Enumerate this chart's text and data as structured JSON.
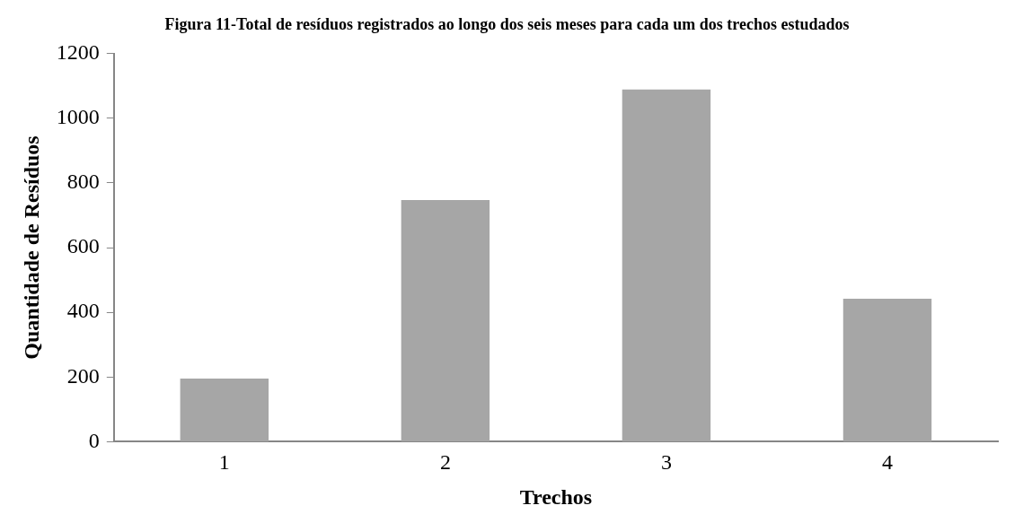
{
  "chart_data": {
    "type": "bar",
    "title": "Figura 11-Total de resíduos registrados ao longo dos seis meses para cada um dos trechos estudados",
    "xlabel": "Trechos",
    "ylabel": "Quantidade de Resíduos",
    "categories": [
      "1",
      "2",
      "3",
      "4"
    ],
    "values": [
      195,
      747,
      1089,
      442
    ],
    "color": "#a6a6a6",
    "ylim": [
      0,
      1200
    ],
    "yticks": [
      0,
      200,
      400,
      600,
      800,
      1000,
      1200
    ],
    "grid": false,
    "legend": false
  }
}
